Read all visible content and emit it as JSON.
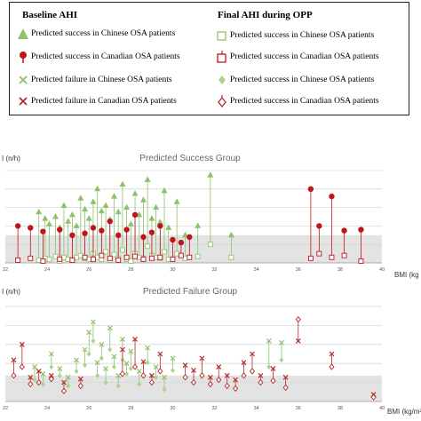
{
  "legend": {
    "baseline_title": "Baseline AHI",
    "final_title": "Final AHI during OPP",
    "baseline_items": [
      {
        "label": "Predicted success in Chinese OSA patients",
        "marker": "triangle",
        "color": "#8dc26a"
      },
      {
        "label": "Predicted success in Canadian OSA patients",
        "marker": "circle",
        "color": "#c0141c"
      },
      {
        "label": "Predicted failure in Chinese OSA patients",
        "marker": "x",
        "color": "#8dc26a"
      },
      {
        "label": "Predicted failure in Canadian OSA patients",
        "marker": "x",
        "color": "#b52a2a"
      }
    ],
    "final_items": [
      {
        "label": "Predicted success in Chinese OSA patients",
        "marker": "open-square",
        "color": "#8dc26a"
      },
      {
        "label": "Predicted success in Canadian OSA patients",
        "marker": "open-square",
        "color": "#c0141c"
      },
      {
        "label": "Predicted success in Chinese OSA patients",
        "marker": "diamond",
        "color": "#a9d58a"
      },
      {
        "label": "Predicted success in Canadian OSA patients",
        "marker": "open-diamond",
        "color": "#b52a2a"
      }
    ]
  },
  "chart_data": [
    {
      "type": "scatter",
      "title": "Predicted Success Group",
      "ylabel": "I (n/h)",
      "xlabel": "BMI (kg",
      "xlim": [
        22,
        40
      ],
      "ylim": [
        0,
        100
      ],
      "xticks": [
        "22",
        "24",
        "26",
        "28",
        "30",
        "32",
        "34",
        "36",
        "38",
        "40"
      ],
      "grid": true,
      "shaded_band": [
        0,
        30
      ],
      "series": [
        {
          "name": "chinese_success",
          "color": "#8dc26a",
          "baseline_marker": "triangle",
          "final_marker": "open-square",
          "points": [
            [
              23.6,
              55,
              3
            ],
            [
              23.9,
              48,
              5
            ],
            [
              24.1,
              42,
              4
            ],
            [
              24.4,
              50,
              7
            ],
            [
              24.6,
              38,
              2
            ],
            [
              24.8,
              62,
              6
            ],
            [
              25.0,
              45,
              4
            ],
            [
              25.2,
              52,
              3
            ],
            [
              25.4,
              40,
              6
            ],
            [
              25.6,
              70,
              8
            ],
            [
              25.8,
              58,
              5
            ],
            [
              26.0,
              48,
              4
            ],
            [
              26.2,
              66,
              10
            ],
            [
              26.4,
              80,
              6
            ],
            [
              26.6,
              56,
              4
            ],
            [
              26.8,
              62,
              12
            ],
            [
              27.0,
              47,
              3
            ],
            [
              27.2,
              72,
              9
            ],
            [
              27.4,
              55,
              5
            ],
            [
              27.6,
              85,
              14
            ],
            [
              27.8,
              60,
              4
            ],
            [
              28.0,
              42,
              2
            ],
            [
              28.2,
              75,
              10
            ],
            [
              28.4,
              52,
              6
            ],
            [
              28.6,
              68,
              5
            ],
            [
              28.8,
              90,
              18
            ],
            [
              29.0,
              48,
              8
            ],
            [
              29.2,
              60,
              6
            ],
            [
              29.4,
              44,
              5
            ],
            [
              29.6,
              78,
              12
            ],
            [
              29.8,
              38,
              4
            ],
            [
              30.2,
              66,
              10
            ],
            [
              30.6,
              30,
              5
            ],
            [
              31.2,
              40,
              7
            ],
            [
              31.8,
              95,
              20
            ],
            [
              32.8,
              30,
              6
            ]
          ]
        },
        {
          "name": "canadian_success",
          "color": "#c0141c",
          "baseline_marker": "circle",
          "final_marker": "open-square",
          "points": [
            [
              22.6,
              40,
              3
            ],
            [
              23.2,
              38,
              5
            ],
            [
              23.8,
              34,
              2
            ],
            [
              24.6,
              36,
              4
            ],
            [
              25.2,
              30,
              3
            ],
            [
              25.8,
              32,
              6
            ],
            [
              26.2,
              38,
              4
            ],
            [
              26.6,
              35,
              8
            ],
            [
              27.0,
              45,
              5
            ],
            [
              27.4,
              30,
              3
            ],
            [
              27.8,
              36,
              6
            ],
            [
              28.2,
              52,
              7
            ],
            [
              28.6,
              28,
              4
            ],
            [
              29.0,
              33,
              5
            ],
            [
              29.4,
              40,
              6
            ],
            [
              30.0,
              25,
              4
            ],
            [
              30.4,
              22,
              8
            ],
            [
              30.8,
              28,
              6
            ],
            [
              36.6,
              80,
              5
            ],
            [
              37.0,
              40,
              10
            ],
            [
              37.6,
              72,
              6
            ],
            [
              38.2,
              35,
              8
            ],
            [
              39.0,
              36,
              2
            ]
          ]
        }
      ]
    },
    {
      "type": "scatter",
      "title": "Predicted Failure Group",
      "ylabel": "I (n/h)",
      "xlabel": "BMI (kg/m²)",
      "xlim": [
        22,
        40
      ],
      "ylim": [
        0,
        110
      ],
      "xticks": [
        "22",
        "24",
        "26",
        "28",
        "30",
        "32",
        "34",
        "36",
        "38",
        "40"
      ],
      "grid": true,
      "shaded_band": [
        0,
        30
      ],
      "series": [
        {
          "name": "chinese_failure",
          "color": "#8dc26a",
          "baseline_marker": "x",
          "final_marker": "diamond",
          "points": [
            [
              23.4,
              40,
              25
            ],
            [
              23.8,
              32,
              20
            ],
            [
              24.2,
              55,
              40
            ],
            [
              24.6,
              38,
              30
            ],
            [
              25.0,
              28,
              18
            ],
            [
              25.4,
              48,
              35
            ],
            [
              25.8,
              60,
              42
            ],
            [
              26.0,
              80,
              55
            ],
            [
              26.2,
              92,
              70
            ],
            [
              26.4,
              45,
              30
            ],
            [
              26.6,
              66,
              50
            ],
            [
              26.8,
              38,
              22
            ],
            [
              27.0,
              85,
              60
            ],
            [
              27.2,
              52,
              40
            ],
            [
              27.4,
              30,
              18
            ],
            [
              27.6,
              72,
              48
            ],
            [
              27.8,
              44,
              32
            ],
            [
              28.0,
              58,
              38
            ],
            [
              28.4,
              35,
              20
            ],
            [
              28.8,
              62,
              45
            ],
            [
              29.2,
              40,
              28
            ],
            [
              29.6,
              28,
              14
            ],
            [
              30.0,
              50,
              36
            ],
            [
              34.6,
              70,
              40
            ],
            [
              35.2,
              68,
              48
            ]
          ]
        },
        {
          "name": "canadian_failure",
          "color": "#b52a2a",
          "baseline_marker": "x",
          "final_marker": "open-diamond",
          "points": [
            [
              22.4,
              48,
              30
            ],
            [
              22.8,
              66,
              40
            ],
            [
              23.2,
              28,
              20
            ],
            [
              23.6,
              35,
              22
            ],
            [
              24.2,
              30,
              26
            ],
            [
              24.8,
              22,
              12
            ],
            [
              25.6,
              26,
              18
            ],
            [
              27.6,
              60,
              32
            ],
            [
              28.2,
              72,
              40
            ],
            [
              28.6,
              46,
              30
            ],
            [
              29.0,
              30,
              22
            ],
            [
              29.4,
              55,
              35
            ],
            [
              30.6,
              42,
              28
            ],
            [
              31.0,
              36,
              22
            ],
            [
              31.4,
              50,
              30
            ],
            [
              31.8,
              28,
              20
            ],
            [
              32.2,
              40,
              25
            ],
            [
              32.6,
              30,
              18
            ],
            [
              33.0,
              25,
              15
            ],
            [
              33.4,
              45,
              30
            ],
            [
              33.8,
              55,
              35
            ],
            [
              34.2,
              30,
              22
            ],
            [
              34.8,
              38,
              24
            ],
            [
              35.4,
              28,
              16
            ],
            [
              36.0,
              70,
              95
            ],
            [
              37.6,
              55,
              40
            ],
            [
              39.6,
              8,
              5
            ]
          ]
        }
      ]
    }
  ]
}
